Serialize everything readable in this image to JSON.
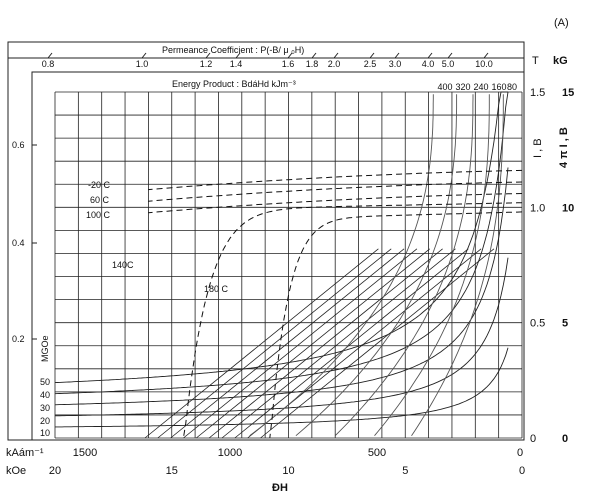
{
  "panel_label": "(A)",
  "chart_data": {
    "type": "line",
    "title": "",
    "top_axis_title": "Permeance Coefficient : P(-B/ μ ₀H)",
    "top_axis_ticks": [
      "0.8",
      "1.0",
      "1.2",
      "1.4",
      "1.6",
      "1.8",
      "2.0",
      "2.5",
      "3.0",
      "4.0",
      "5.0",
      "10.0"
    ],
    "energy_axis_title": "Energy Product : BdáHd   kJm⁻³",
    "energy_ticks": [
      "400",
      "320",
      "240",
      "160",
      "80"
    ],
    "mgoe_label": "MGOe",
    "mgoe_ticks": [
      "50",
      "40",
      "30",
      "20",
      "10"
    ],
    "left_ticks": [
      "0.6",
      "0.4",
      "0.2"
    ],
    "right_units_T": "T",
    "right_units_kG": "kG",
    "right_axis_label_IB": "I , B",
    "right_axis_label_4piIB": "4 π I , B",
    "right_ticks_T": [
      "1.5",
      "1.0",
      "0.5",
      "0"
    ],
    "right_ticks_kG": [
      "15",
      "10",
      "5",
      "0"
    ],
    "bottom_unit_kA": "kAám⁻¹",
    "bottom_unit_kOe": "kOe",
    "bottom_ticks_kA": [
      "1500",
      "1000",
      "500",
      "0"
    ],
    "bottom_ticks_kOe": [
      "20",
      "15",
      "10",
      "5",
      "0"
    ],
    "xlabel": "ÐH",
    "xlim_kOe": [
      20,
      0
    ],
    "ylim_kG": [
      0,
      15
    ],
    "temperatures": [
      "-20 C",
      "60 C",
      "100 C",
      "140C",
      "180 C"
    ],
    "series": [
      {
        "name": "-20 C",
        "dashed": true,
        "Br_kG": 11.6,
        "Hcj_kOe": null
      },
      {
        "name": "60 C",
        "dashed": true,
        "Br_kG": 11.1,
        "Hcj_kOe": null
      },
      {
        "name": "100 C",
        "dashed": true,
        "Br_kG": 10.6,
        "Hcj_kOe": null
      },
      {
        "name": "140C",
        "dashed": true,
        "Br_kG": 10.2,
        "Hcj_kOe": 14.5
      },
      {
        "name": "180 C",
        "dashed": true,
        "Br_kG": 9.8,
        "Hcj_kOe": 10.8
      }
    ],
    "grid": true
  }
}
